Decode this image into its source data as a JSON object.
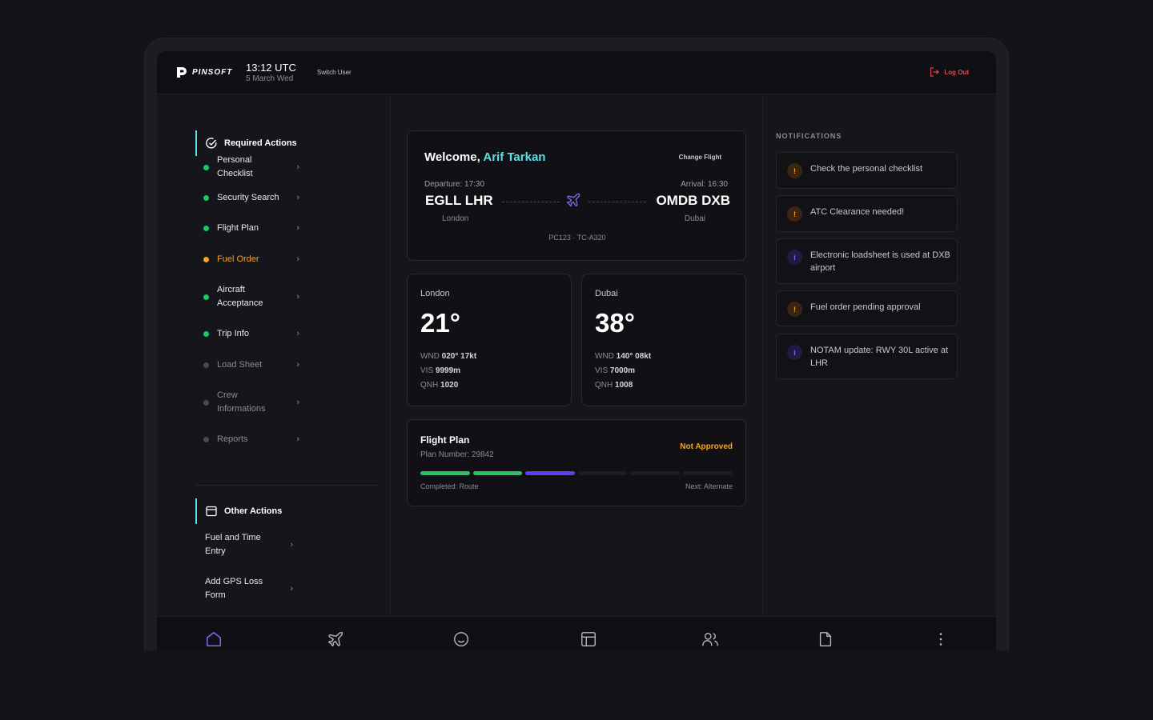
{
  "header": {
    "logo_text": "PINSOFT",
    "time": "13:12 UTC",
    "date": "5 March Wed",
    "switch_user": "Switch User",
    "logout": "Log Out"
  },
  "required_actions": {
    "title": "Required Actions",
    "items": [
      {
        "label": "Personal Checklist",
        "status": "done"
      },
      {
        "label": "Security Search",
        "status": "done"
      },
      {
        "label": "Flight Plan",
        "status": "done"
      },
      {
        "label": "Fuel Order",
        "status": "pending"
      },
      {
        "label": "Aircraft Acceptance",
        "status": "done"
      },
      {
        "label": "Trip Info",
        "status": "done"
      },
      {
        "label": "Load Sheet",
        "status": "inactive"
      },
      {
        "label": "Crew Informations",
        "status": "inactive"
      },
      {
        "label": "Reports",
        "status": "inactive"
      }
    ]
  },
  "other_actions": {
    "title": "Other Actions",
    "items": [
      {
        "label": "Fuel and Time Entry"
      },
      {
        "label": "Add GPS Loss Form"
      }
    ]
  },
  "welcome": {
    "greeting": "Welcome,",
    "name": "Arif Tarkan",
    "change_flight": "Change Flight",
    "departure_label": "Departure: 17:30",
    "departure_code": "EGLL LHR",
    "departure_city": "London",
    "arrival_label": "Arrival: 16:30",
    "arrival_code": "OMDB DXB",
    "arrival_city": "Dubai",
    "flight_reg": "PC123 · TC-A320"
  },
  "weather": [
    {
      "city": "London",
      "temp": "21°",
      "wnd_label": "WND",
      "wnd": "020° 17kt",
      "vis_label": "VIS",
      "vis": "9999m",
      "qnh_label": "QNH",
      "qnh": "1020"
    },
    {
      "city": "Dubai",
      "temp": "38°",
      "wnd_label": "WND",
      "wnd": "140° 08kt",
      "vis_label": "VIS",
      "vis": "7000m",
      "qnh_label": "QNH",
      "qnh": "1008"
    }
  ],
  "flight_plan": {
    "title": "Flight Plan",
    "plan_number": "Plan Number: 29842",
    "status": "Not Approved",
    "steps": [
      "done",
      "done",
      "current",
      "todo",
      "todo",
      "todo"
    ],
    "completed": "Completed: Route",
    "next": "Next: Alternate"
  },
  "notifications": {
    "title": "NOTIFICATIONS",
    "items": [
      {
        "type": "warn",
        "icon": "!",
        "text": "Check the personal checklist"
      },
      {
        "type": "warn",
        "icon": "!",
        "text": "ATC Clearance needed!"
      },
      {
        "type": "info",
        "icon": "i",
        "text": "Electronic loadsheet is used at DXB airport"
      },
      {
        "type": "warn",
        "icon": "!",
        "text": "Fuel order pending approval"
      },
      {
        "type": "info",
        "icon": "i",
        "text": "NOTAM update: RWY 30L active at LHR"
      }
    ]
  },
  "colors": {
    "accent": "#5ce0e6",
    "done": "#22c55e",
    "pending": "#f5a524",
    "inactive": "#4a4a52",
    "current": "#5b3ff0",
    "danger": "#e5484d"
  },
  "bottom_nav": [
    "home-icon",
    "plane-icon",
    "smile-icon",
    "layout-icon",
    "users-icon",
    "document-icon",
    "more-icon"
  ]
}
